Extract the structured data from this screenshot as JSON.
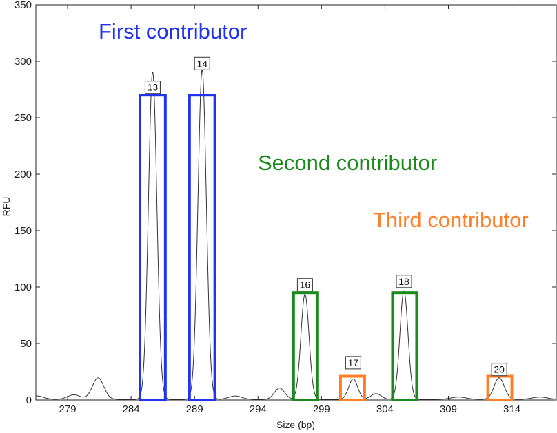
{
  "chart_data": {
    "type": "line",
    "xlabel": "Size (bp)",
    "ylabel": "RFU",
    "xlim": [
      276.5,
      317.5
    ],
    "ylim": [
      0,
      350
    ],
    "x_ticks": [
      279,
      284,
      289,
      294,
      299,
      304,
      309,
      314
    ],
    "y_ticks": [
      0,
      50,
      100,
      150,
      200,
      250,
      300,
      350
    ],
    "grid": false,
    "trace": {
      "color": "#333333",
      "peaks": [
        {
          "x": 281.4,
          "height": 19,
          "width": 0.45
        },
        {
          "x": 285.7,
          "height": 290,
          "width": 0.33
        },
        {
          "x": 289.6,
          "height": 292,
          "width": 0.33
        },
        {
          "x": 295.7,
          "height": 10,
          "width": 0.4
        },
        {
          "x": 297.7,
          "height": 93,
          "width": 0.32
        },
        {
          "x": 301.5,
          "height": 18,
          "width": 0.35
        },
        {
          "x": 305.5,
          "height": 96,
          "width": 0.32
        },
        {
          "x": 313.0,
          "height": 19,
          "width": 0.4
        },
        {
          "x": 276.6,
          "height": 3,
          "width": 0.5
        },
        {
          "x": 279.5,
          "height": 4,
          "width": 0.5
        },
        {
          "x": 292.2,
          "height": 3,
          "width": 0.5
        },
        {
          "x": 303.3,
          "height": 5,
          "width": 0.4
        },
        {
          "x": 309.8,
          "height": 2,
          "width": 0.6
        },
        {
          "x": 316.2,
          "height": 2,
          "width": 0.6
        }
      ]
    },
    "alleles": [
      {
        "label": "13",
        "x": 285.7,
        "label_y": 277,
        "contributor": 0
      },
      {
        "label": "14",
        "x": 289.6,
        "label_y": 298,
        "contributor": 0
      },
      {
        "label": "16",
        "x": 297.7,
        "label_y": 102,
        "contributor": 1
      },
      {
        "label": "17",
        "x": 301.5,
        "label_y": 33,
        "contributor": 2
      },
      {
        "label": "18",
        "x": 305.5,
        "label_y": 105,
        "contributor": 1
      },
      {
        "label": "20",
        "x": 313.0,
        "label_y": 27,
        "contributor": 2
      }
    ],
    "contributors": [
      {
        "name": "First contributor",
        "color": "#2233ee"
      },
      {
        "name": "Second contributor",
        "color": "#1a8a1a"
      },
      {
        "name": "Third contributor",
        "color": "#ff7f27"
      }
    ],
    "highlight_boxes": [
      {
        "contributor": 0,
        "x0": 284.7,
        "x1": 286.7,
        "y0": 0,
        "y1": 270
      },
      {
        "contributor": 0,
        "x0": 288.6,
        "x1": 290.6,
        "y0": 0,
        "y1": 270
      },
      {
        "contributor": 1,
        "x0": 296.8,
        "x1": 298.7,
        "y0": 0,
        "y1": 95
      },
      {
        "contributor": 2,
        "x0": 300.5,
        "x1": 302.4,
        "y0": 0,
        "y1": 21
      },
      {
        "contributor": 1,
        "x0": 304.6,
        "x1": 306.5,
        "y0": 0,
        "y1": 95
      },
      {
        "contributor": 2,
        "x0": 312.1,
        "x1": 314.0,
        "y0": 0,
        "y1": 21
      }
    ]
  }
}
